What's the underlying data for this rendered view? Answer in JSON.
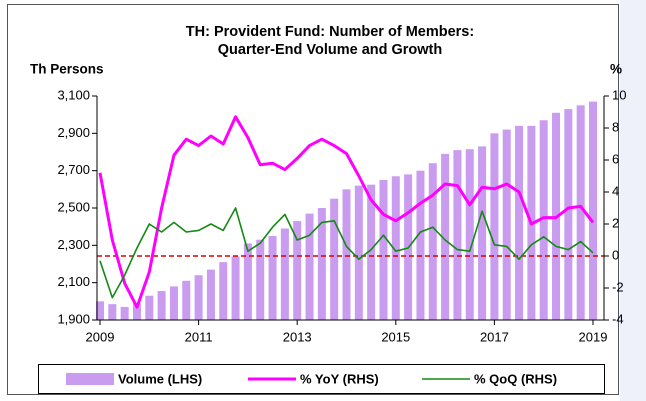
{
  "chart_data": {
    "type": "combo",
    "title": [
      "TH: Provident Fund: Number of Members:",
      "Quarter-End Volume and Growth"
    ],
    "ylabel": "Th Persons",
    "y2label": "%",
    "categories": [
      "2009",
      null,
      null,
      null,
      null,
      null,
      null,
      null,
      "2011",
      null,
      null,
      null,
      null,
      null,
      null,
      null,
      "2013",
      null,
      null,
      null,
      null,
      null,
      null,
      null,
      "2015",
      null,
      null,
      null,
      null,
      null,
      null,
      null,
      "2017",
      null,
      null,
      null,
      null,
      null,
      null,
      null,
      "2019"
    ],
    "series": [
      {
        "name": "Volume (LHS)",
        "type": "bar",
        "color": "#c99cf0",
        "values": [
          2000,
          1985,
          1970,
          1990,
          2030,
          2055,
          2080,
          2110,
          2140,
          2170,
          2210,
          2240,
          2310,
          2330,
          2350,
          2390,
          2430,
          2470,
          2500,
          2550,
          2600,
          2620,
          2625,
          2650,
          2670,
          2680,
          2700,
          2740,
          2790,
          2810,
          2815,
          2830,
          2900,
          2920,
          2940,
          2940,
          2970,
          3010,
          3030,
          3050,
          3070
        ]
      },
      {
        "name": "% YoY (RHS)",
        "type": "line",
        "axis": "y2",
        "color": "#ff00ff",
        "values": [
          5.2,
          1.0,
          -1.7,
          -3.2,
          -1.0,
          3.0,
          6.3,
          7.3,
          6.9,
          7.5,
          7.0,
          8.7,
          7.4,
          5.7,
          5.8,
          5.4,
          6.1,
          6.9,
          7.3,
          6.9,
          6.4,
          5.0,
          3.5,
          2.6,
          2.2,
          2.7,
          3.3,
          3.8,
          4.5,
          4.4,
          3.2,
          4.3,
          4.2,
          4.5,
          4.0,
          2.0,
          2.4,
          2.4,
          3.0,
          3.1,
          2.1
        ]
      },
      {
        "name": "% QoQ (RHS)",
        "type": "line",
        "axis": "y2",
        "color": "#138a13",
        "values": [
          -0.3,
          -2.6,
          -1.2,
          0.5,
          2.0,
          1.5,
          2.1,
          1.5,
          1.6,
          2.0,
          1.6,
          3.0,
          0.3,
          0.8,
          1.8,
          2.6,
          1.0,
          1.3,
          2.1,
          2.2,
          0.6,
          -0.2,
          0.4,
          1.3,
          0.3,
          0.5,
          1.5,
          1.8,
          1.0,
          0.4,
          0.3,
          2.8,
          0.7,
          0.6,
          -0.2,
          0.7,
          1.2,
          0.6,
          0.4,
          0.9,
          0.2
        ]
      }
    ],
    "ylim": [
      1900,
      3100
    ],
    "yticks": [
      {
        "value": 1900,
        "label": "1,900"
      },
      {
        "value": 2100,
        "label": "2,100"
      },
      {
        "value": 2300,
        "label": "2,300"
      },
      {
        "value": 2500,
        "label": "2,500"
      },
      {
        "value": 2700,
        "label": "2,700"
      },
      {
        "value": 2900,
        "label": "2,900"
      },
      {
        "value": 3100,
        "label": "3,100"
      }
    ],
    "y2lim": [
      -4,
      10
    ],
    "y2ticks": [
      -4,
      -2,
      0,
      2,
      4,
      6,
      8,
      10
    ],
    "reference_line": {
      "axis": "y2",
      "value": 0,
      "color": "#dd0000"
    },
    "grid": false,
    "legend": "bottom"
  }
}
